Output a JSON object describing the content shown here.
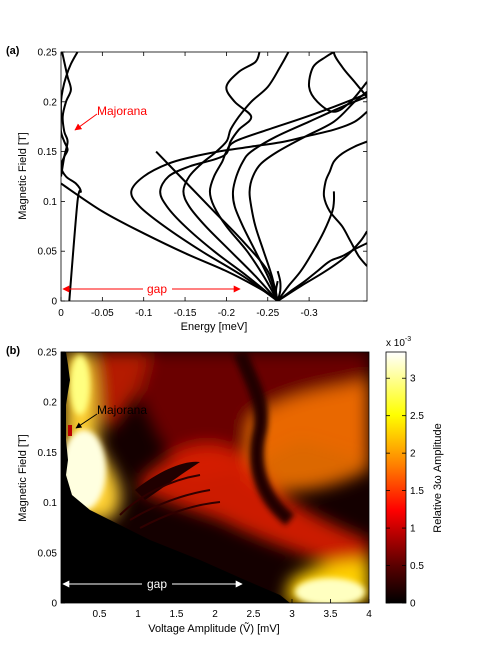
{
  "chart_data": [
    {
      "panel_label": "(a)",
      "type": "line",
      "xlabel": "Energy [meV]",
      "ylabel": "Magnetic Field [T]",
      "xlim": [
        0,
        -0.37
      ],
      "ylim": [
        0,
        0.25
      ],
      "xticks": [
        0,
        -0.05,
        -0.1,
        -0.15,
        -0.2,
        -0.25,
        -0.3
      ],
      "xtick_labels": [
        "0",
        "-0.05",
        "-0.1",
        "-0.15",
        "-0.2",
        "-0.25",
        "-0.3"
      ],
      "yticks": [
        0,
        0.05,
        0.1,
        0.15,
        0.2,
        0.25
      ],
      "ytick_labels": [
        "0",
        "0.05",
        "0.1",
        "0.15",
        "0.2",
        "0.25"
      ],
      "grid": false,
      "series": [
        {
          "x": [
            -0.02,
            -0.012,
            -0.006,
            -0.002,
            0.0,
            0.0,
            0.0,
            -0.004,
            -0.008,
            -0.004,
            0.0,
            -0.006,
            -0.018,
            -0.024,
            -0.02,
            -0.01
          ],
          "y": [
            0.25,
            0.238,
            0.225,
            0.212,
            0.2,
            0.185,
            0.17,
            0.16,
            0.152,
            0.145,
            0.135,
            0.125,
            0.118,
            0.11,
            0.1,
            0.0
          ]
        },
        {
          "x": [
            0.0,
            -0.004,
            -0.008,
            -0.012,
            -0.006,
            -0.002,
            -0.004,
            -0.008,
            -0.004,
            0.0
          ],
          "y": [
            0.255,
            0.24,
            0.225,
            0.212,
            0.2,
            0.185,
            0.17,
            0.16,
            0.145,
            0.125
          ]
        },
        {
          "x": [
            0.0,
            -0.05,
            -0.1,
            -0.15,
            -0.2,
            -0.235,
            -0.255,
            -0.262
          ],
          "y": [
            0.118,
            0.09,
            0.068,
            0.048,
            0.03,
            0.015,
            0.005,
            0.0
          ]
        },
        {
          "x": [
            -0.262,
            -0.25,
            -0.22,
            -0.185,
            -0.15,
            -0.115
          ],
          "y": [
            0.0,
            0.03,
            0.06,
            0.09,
            0.12,
            0.15
          ]
        },
        {
          "x": [
            -0.262,
            -0.22,
            -0.17,
            -0.125,
            -0.095,
            -0.085,
            -0.1,
            -0.13,
            -0.16,
            -0.19,
            -0.23,
            -0.27,
            -0.3,
            -0.33,
            -0.355,
            -0.37
          ],
          "y": [
            0.0,
            0.025,
            0.05,
            0.075,
            0.095,
            0.11,
            0.125,
            0.138,
            0.145,
            0.15,
            0.155,
            0.16,
            0.166,
            0.172,
            0.18,
            0.19
          ]
        },
        {
          "x": [
            -0.262,
            -0.225,
            -0.185,
            -0.15,
            -0.128,
            -0.12,
            -0.13,
            -0.155,
            -0.185,
            -0.2,
            -0.205,
            -0.215,
            -0.23,
            -0.21,
            -0.2,
            -0.215,
            -0.235,
            -0.24
          ],
          "y": [
            0.0,
            0.025,
            0.05,
            0.075,
            0.095,
            0.11,
            0.125,
            0.135,
            0.142,
            0.148,
            0.16,
            0.172,
            0.185,
            0.2,
            0.215,
            0.23,
            0.24,
            0.25
          ]
        },
        {
          "x": [
            -0.262,
            -0.235,
            -0.205,
            -0.175,
            -0.155,
            -0.148,
            -0.155,
            -0.17,
            -0.185,
            -0.2,
            -0.205,
            -0.215,
            -0.23,
            -0.25,
            -0.265,
            -0.275
          ],
          "y": [
            0.0,
            0.025,
            0.05,
            0.075,
            0.095,
            0.11,
            0.125,
            0.138,
            0.148,
            0.16,
            0.172,
            0.185,
            0.2,
            0.215,
            0.235,
            0.25
          ]
        },
        {
          "x": [
            -0.262,
            -0.245,
            -0.225,
            -0.2,
            -0.185,
            -0.18,
            -0.185,
            -0.195,
            -0.2,
            -0.21,
            -0.25,
            -0.29,
            -0.33,
            -0.37
          ],
          "y": [
            0.0,
            0.025,
            0.05,
            0.075,
            0.095,
            0.11,
            0.125,
            0.14,
            0.15,
            0.16,
            0.172,
            0.183,
            0.195,
            0.208
          ]
        },
        {
          "x": [
            -0.262,
            -0.25,
            -0.235,
            -0.22,
            -0.21,
            -0.208,
            -0.212,
            -0.22,
            -0.23,
            -0.26,
            -0.3,
            -0.34,
            -0.37
          ],
          "y": [
            0.0,
            0.025,
            0.05,
            0.075,
            0.095,
            0.11,
            0.125,
            0.14,
            0.15,
            0.165,
            0.18,
            0.195,
            0.205
          ]
        },
        {
          "x": [
            -0.262,
            -0.255,
            -0.245,
            -0.235,
            -0.23,
            -0.228,
            -0.232,
            -0.242,
            -0.262,
            -0.295,
            -0.33,
            -0.355,
            -0.37
          ],
          "y": [
            0.0,
            0.025,
            0.05,
            0.075,
            0.095,
            0.11,
            0.125,
            0.138,
            0.15,
            0.165,
            0.18,
            0.2,
            0.21
          ]
        },
        {
          "x": [
            -0.262,
            -0.275,
            -0.29,
            -0.305,
            -0.318,
            -0.328,
            -0.33,
            -0.33
          ],
          "y": [
            0.0,
            0.015,
            0.03,
            0.05,
            0.07,
            0.09,
            0.1,
            0.11
          ]
        },
        {
          "x": [
            -0.262,
            -0.29,
            -0.32,
            -0.345,
            -0.362,
            -0.37
          ],
          "y": [
            0.0,
            0.015,
            0.03,
            0.045,
            0.06,
            0.07
          ]
        },
        {
          "x": [
            -0.262,
            -0.278,
            -0.295,
            -0.31,
            -0.325,
            -0.34,
            -0.355,
            -0.37
          ],
          "y": [
            0.0,
            0.01,
            0.02,
            0.03,
            0.04,
            0.045,
            0.052,
            0.058
          ]
        },
        {
          "x": [
            -0.37,
            -0.355,
            -0.34,
            -0.33,
            -0.325,
            -0.32,
            -0.318,
            -0.325,
            -0.34,
            -0.35,
            -0.36,
            -0.37
          ],
          "y": [
            0.16,
            0.155,
            0.148,
            0.14,
            0.13,
            0.12,
            0.105,
            0.09,
            0.075,
            0.06,
            0.045,
            0.035
          ]
        },
        {
          "x": [
            -0.37,
            -0.35,
            -0.33,
            -0.31,
            -0.3,
            -0.305,
            -0.32,
            -0.33
          ],
          "y": [
            0.22,
            0.2,
            0.19,
            0.2,
            0.215,
            0.235,
            0.245,
            0.25
          ]
        },
        {
          "x": [
            -0.37,
            -0.355,
            -0.34,
            -0.33,
            -0.34,
            -0.355,
            -0.37
          ],
          "y": [
            0.205,
            0.22,
            0.235,
            0.25,
            0.26,
            0.26,
            0.255
          ]
        },
        {
          "x": [
            -0.262,
            -0.265,
            -0.265,
            -0.262
          ],
          "y": [
            0.0,
            0.01,
            0.02,
            0.03
          ]
        },
        {
          "x": [
            -0.262,
            -0.26,
            -0.262
          ],
          "y": [
            0.0,
            0.01,
            0.02
          ]
        }
      ],
      "annotations": [
        {
          "text": "Majorana",
          "color": "#ff0000"
        },
        {
          "text": "gap",
          "color": "#ff0000"
        }
      ]
    },
    {
      "panel_label": "(b)",
      "type": "heatmap",
      "xlabel": "Voltage Amplitude (Ṽ) [mV]",
      "ylabel": "Magnetic Field [T]",
      "xlim": [
        0,
        4
      ],
      "ylim": [
        0,
        0.25
      ],
      "xticks": [
        0.5,
        1,
        1.5,
        2,
        2.5,
        3,
        3.5,
        4
      ],
      "xtick_labels": [
        "0.5",
        "1",
        "1.5",
        "2",
        "2.5",
        "3",
        "3.5",
        "4"
      ],
      "yticks": [
        0,
        0.05,
        0.1,
        0.15,
        0.2,
        0.25
      ],
      "ytick_labels": [
        "0",
        "0.05",
        "0.1",
        "0.15",
        "0.2",
        "0.25"
      ],
      "colormap": "hot",
      "colorbar": {
        "label": "Relative 3ω Amplitude",
        "exponent_label": "x 10",
        "exponent_power": "-3",
        "range": [
          0,
          3.35
        ],
        "ticks": [
          0,
          0.5,
          1,
          1.5,
          2,
          2.5,
          3
        ],
        "tick_labels": [
          "0",
          "0.5",
          "1",
          "1.5",
          "2",
          "2.5",
          "3"
        ]
      },
      "annotations": [
        {
          "text": "Majorana",
          "color": "#000000"
        },
        {
          "text": "gap",
          "color": "#ffffff"
        }
      ]
    }
  ]
}
